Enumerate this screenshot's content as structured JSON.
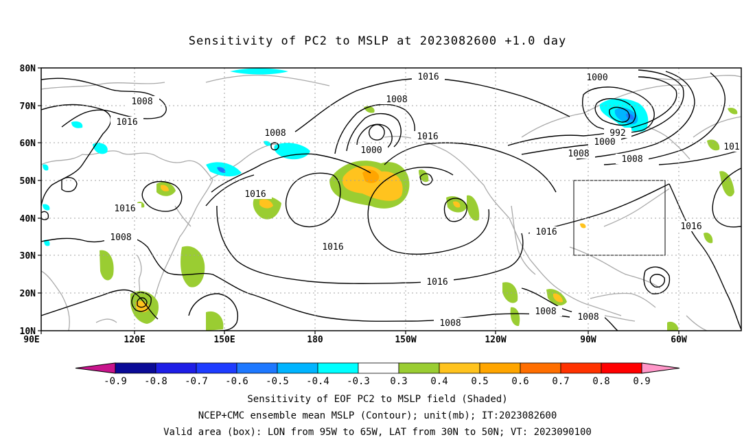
{
  "title": "Sensitivity of PC2 to MSLP at 2023082600 +1.0 day",
  "axes": {
    "lat_labels": [
      "80N",
      "70N",
      "60N",
      "50N",
      "40N",
      "30N",
      "20N",
      "10N"
    ],
    "lon_labels": [
      "90E",
      "120E",
      "150E",
      "180",
      "150W",
      "120W",
      "90W",
      "60W"
    ]
  },
  "contour_labels": [
    "1016",
    "1000",
    "1008",
    "1008",
    "1016",
    "1008",
    "992",
    "1000",
    "1008",
    "1016",
    "1008",
    "1000",
    "1016",
    "1016",
    "1016",
    "1016",
    "1008",
    "1016",
    "1016",
    "1008",
    "1008",
    "101"
  ],
  "colorbar": {
    "ticks": [
      "-0.9",
      "-0.8",
      "-0.7",
      "-0.6",
      "-0.5",
      "-0.4",
      "-0.3",
      "0.3",
      "0.4",
      "0.5",
      "0.6",
      "0.7",
      "0.8",
      "0.9"
    ],
    "colors": [
      "#0a0a96",
      "#1e1ee6",
      "#1e3cff",
      "#1e78ff",
      "#00b4ff",
      "#00ffff",
      "#ffffff",
      "#9ACD32",
      "#FFC31E",
      "#FFA500",
      "#FF6E00",
      "#FF3200",
      "#FF0000"
    ],
    "left_tip_color": "#c8148c",
    "right_tip_color": "#ff96c8"
  },
  "captions": [
    "Sensitivity of EOF PC2 to MSLP field (Shaded)",
    "NCEP+CMC ensemble mean MSLP (Contour); unit(mb); IT:2023082600",
    "Valid area (box): LON from 95W to 65W, LAT from 30N to 50N; VT: 2023090100"
  ],
  "valid_box": {
    "lon_min": -95,
    "lon_max": -65,
    "lat_min": 30,
    "lat_max": 50
  }
}
